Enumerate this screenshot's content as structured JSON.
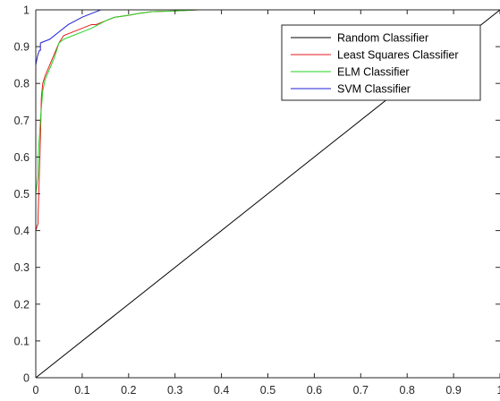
{
  "chart_data": {
    "type": "line",
    "title": "",
    "xlabel": "",
    "ylabel": "",
    "xlim": [
      0,
      1
    ],
    "ylim": [
      0,
      1
    ],
    "grid": false,
    "legend_position": "top-right",
    "x_ticks": [
      "0",
      "0.1",
      "0.2",
      "0.3",
      "0.4",
      "0.5",
      "0.6",
      "0.7",
      "0.8",
      "0.9",
      "1"
    ],
    "y_ticks": [
      "0",
      "0.1",
      "0.2",
      "0.3",
      "0.4",
      "0.5",
      "0.6",
      "0.7",
      "0.8",
      "0.9",
      "1"
    ],
    "series": [
      {
        "name": "Random Classifier",
        "color": "#000000",
        "x": [
          0,
          1
        ],
        "y": [
          0,
          1
        ]
      },
      {
        "name": "Least Squares Classifier",
        "color": "#e41a1c",
        "x": [
          0,
          0,
          0.005,
          0.005,
          0.01,
          0.012,
          0.015,
          0.02,
          0.03,
          0.04,
          0.05,
          0.06,
          0.08,
          0.1,
          0.12,
          0.13,
          0.15,
          0.17,
          0.2,
          0.22,
          0.25,
          0.3,
          0.35,
          0.4,
          1
        ],
        "y": [
          0,
          0.4,
          0.42,
          0.44,
          0.65,
          0.76,
          0.8,
          0.82,
          0.85,
          0.88,
          0.91,
          0.93,
          0.94,
          0.95,
          0.96,
          0.96,
          0.97,
          0.98,
          0.985,
          0.99,
          0.995,
          0.997,
          1,
          1,
          1
        ]
      },
      {
        "name": "ELM Classifier",
        "color": "#21d321",
        "x": [
          0,
          0,
          0.005,
          0.005,
          0.01,
          0.015,
          0.02,
          0.03,
          0.04,
          0.05,
          0.06,
          0.08,
          0.1,
          0.12,
          0.15,
          0.17,
          0.2,
          0.22,
          0.25,
          0.3,
          0.35,
          0.4,
          1
        ],
        "y": [
          0,
          0.5,
          0.55,
          0.6,
          0.7,
          0.78,
          0.81,
          0.84,
          0.87,
          0.91,
          0.92,
          0.93,
          0.94,
          0.95,
          0.97,
          0.98,
          0.985,
          0.99,
          0.995,
          0.997,
          1,
          1,
          1
        ]
      },
      {
        "name": "SVM Classifier",
        "color": "#1f1fd6",
        "x": [
          0,
          0,
          0.003,
          0.005,
          0.008,
          0.01,
          0.01,
          0.03,
          0.05,
          0.07,
          0.1,
          0.13,
          0.14,
          0.16,
          0.2,
          1
        ],
        "y": [
          0,
          0.85,
          0.87,
          0.88,
          0.89,
          0.89,
          0.91,
          0.92,
          0.94,
          0.96,
          0.98,
          0.995,
          1,
          1,
          1,
          1
        ]
      }
    ]
  }
}
